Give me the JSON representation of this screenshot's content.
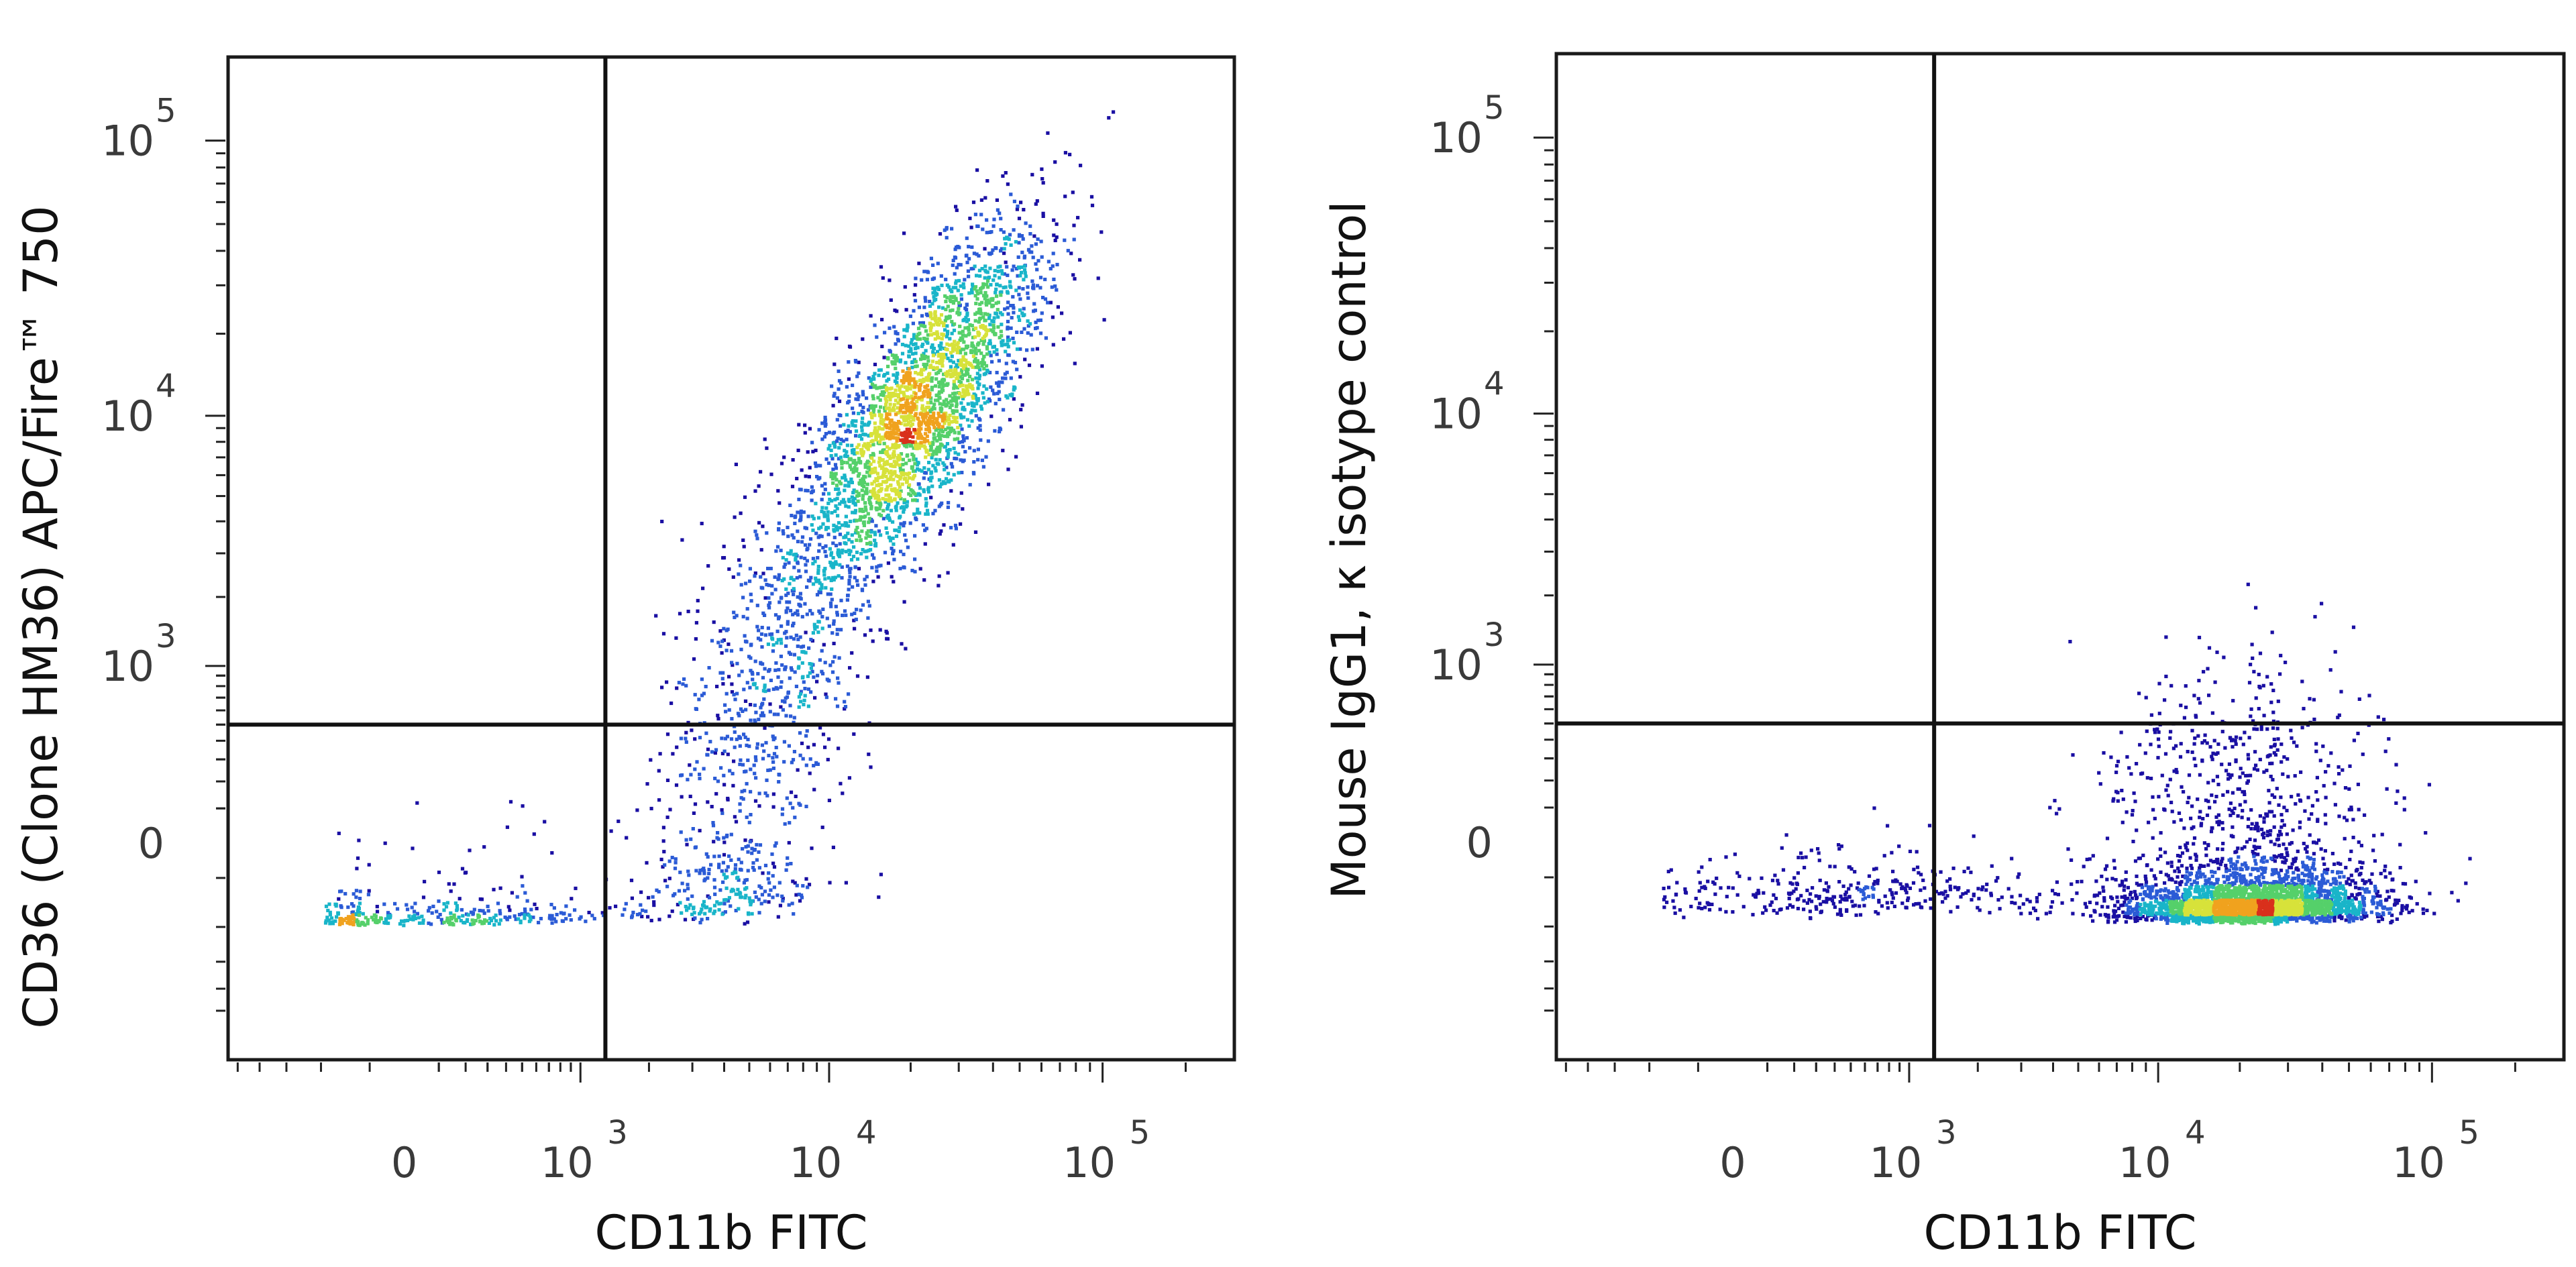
{
  "colors": {
    "frame": "#1a1a1a",
    "gate_line": "#111111",
    "density_scale": [
      "#1a0fa3",
      "#2b5bd6",
      "#19b5c9",
      "#55d06a",
      "#d7e23a",
      "#f0a21e",
      "#d9301c"
    ]
  },
  "chart_data": [
    {
      "type": "scatter",
      "title": "",
      "xlabel": "CD11b FITC",
      "ylabel": "CD36 (Clone HM36) APC/Fire™ 750",
      "x_scale": "biexponential",
      "y_scale": "biexponential",
      "xlim": [
        -1000,
        300000
      ],
      "ylim": [
        -1500,
        200000
      ],
      "x_ticks": [
        {
          "value": 0,
          "base": "0",
          "exp": ""
        },
        {
          "value": 1000,
          "base": "10",
          "exp": "3"
        },
        {
          "value": 10000,
          "base": "10",
          "exp": "4"
        },
        {
          "value": 100000,
          "base": "10",
          "exp": "5"
        }
      ],
      "y_ticks": [
        {
          "value": 0,
          "base": "0",
          "exp": ""
        },
        {
          "value": 1000,
          "base": "10",
          "exp": "3"
        },
        {
          "value": 10000,
          "base": "10",
          "exp": "4"
        },
        {
          "value": 100000,
          "base": "10",
          "exp": "5"
        }
      ],
      "quadrant_gate": {
        "x": 1300,
        "y": 500
      },
      "populations": [
        {
          "name": "",
          "events": 2600,
          "center_log": [
            4.35,
            4.05
          ],
          "spread_log": [
            0.22,
            0.32
          ],
          "correlation": 0.75
        },
        {
          "name": "",
          "events": 700,
          "center_log": [
            3.85,
            3.2
          ],
          "spread_log": [
            0.22,
            0.38
          ],
          "correlation": 0.6
        },
        {
          "name": "",
          "events": 300,
          "center_log": [
            3.7,
            2.3
          ],
          "spread_log": [
            0.18,
            0.3
          ],
          "correlation": 0.3
        },
        {
          "name": "",
          "events": 350,
          "center_log": [
            2.6,
            1.7
          ],
          "spread_log": [
            0.45,
            0.35
          ],
          "correlation": 0.2
        }
      ],
      "grid": false,
      "legend": "none"
    },
    {
      "type": "scatter",
      "title": "",
      "xlabel": "CD11b FITC",
      "ylabel": "Mouse IgG1, κ isotype control",
      "x_scale": "biexponential",
      "y_scale": "biexponential",
      "xlim": [
        -1000,
        300000
      ],
      "ylim": [
        -1500,
        200000
      ],
      "x_ticks": [
        {
          "value": 0,
          "base": "0",
          "exp": ""
        },
        {
          "value": 1000,
          "base": "10",
          "exp": "3"
        },
        {
          "value": 10000,
          "base": "10",
          "exp": "4"
        },
        {
          "value": 100000,
          "base": "10",
          "exp": "5"
        }
      ],
      "y_ticks": [
        {
          "value": 0,
          "base": "0",
          "exp": ""
        },
        {
          "value": 1000,
          "base": "10",
          "exp": "3"
        },
        {
          "value": 10000,
          "base": "10",
          "exp": "4"
        },
        {
          "value": 100000,
          "base": "10",
          "exp": "5"
        }
      ],
      "quadrant_gate": {
        "x": 1300,
        "y": 500
      },
      "populations": [
        {
          "name": "",
          "events": 3000,
          "center_log": [
            4.35,
            2.0
          ],
          "spread_log": [
            0.23,
            0.28
          ],
          "correlation": 0.1
        },
        {
          "name": "",
          "events": 350,
          "center_log": [
            4.25,
            2.75
          ],
          "spread_log": [
            0.25,
            0.22
          ],
          "correlation": 0.1
        },
        {
          "name": "",
          "events": 350,
          "center_log": [
            2.9,
            2.15
          ],
          "spread_log": [
            0.4,
            0.18
          ],
          "correlation": 0.0
        }
      ],
      "grid": false,
      "legend": "none"
    }
  ]
}
